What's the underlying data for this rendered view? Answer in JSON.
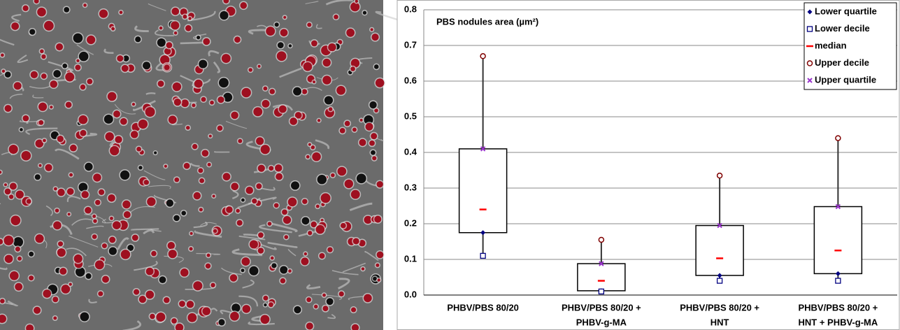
{
  "chart_data": {
    "type": "box",
    "title": "PBS nodules area (µm²)",
    "categories": [
      [
        "PHBV/PBS 80/20"
      ],
      [
        "PHBV/PBS 80/20 +",
        "PHBV-g-MA"
      ],
      [
        "PHBV/PBS 80/20 +",
        "HNT"
      ],
      [
        "PHBV/PBS 80/20 +",
        "HNT + PHBV-g-MA"
      ]
    ],
    "series": [
      {
        "name": "Lower quartile",
        "color": "#000080",
        "values": [
          0.175,
          0.012,
          0.055,
          0.06
        ]
      },
      {
        "name": "Lower decile",
        "color": "#000080",
        "values": [
          0.11,
          0.01,
          0.04,
          0.04
        ]
      },
      {
        "name": "median",
        "color": "#ff0000",
        "values": [
          0.24,
          0.04,
          0.103,
          0.125
        ]
      },
      {
        "name": "Upper decile",
        "color": "#800000",
        "values": [
          0.67,
          0.155,
          0.335,
          0.44
        ]
      },
      {
        "name": "Upper quartile",
        "color": "#9933cc",
        "values": [
          0.41,
          0.088,
          0.195,
          0.248
        ]
      }
    ],
    "ylim": [
      0,
      0.8
    ],
    "yticks": [
      {
        "value": 0,
        "label": "0.0"
      },
      0.1,
      0.2,
      0.3,
      0.4,
      0.5,
      0.6,
      0.7,
      0.8
    ],
    "grid": true,
    "legend": "top-right"
  }
}
